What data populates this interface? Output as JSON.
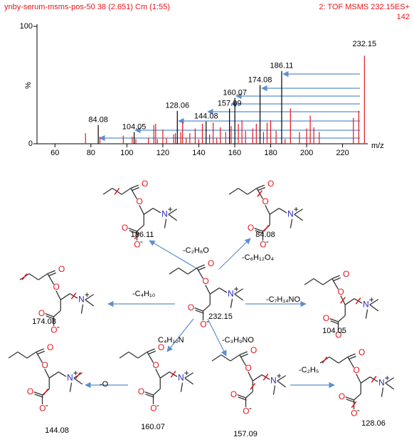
{
  "chart_data": {
    "type": "stem",
    "title": "ynby-serum-msms-pos-50 38 (2.651) Cm (1:55)",
    "subtitle": "2: TOF MSMS 232.15ES+",
    "annotation": "142",
    "xlabel": "m/z",
    "ylabel": "%",
    "xlim": [
      50,
      234
    ],
    "xticks": [
      60,
      80,
      100,
      120,
      140,
      160,
      180,
      200,
      220
    ],
    "ylim": [
      0,
      100
    ],
    "yticks": [
      0,
      100
    ],
    "series": [
      {
        "x": [
          84.08,
          104.05,
          128.06,
          144.08,
          157.09,
          160.07,
          174.08,
          186.11,
          232.15
        ],
        "values": [
          16,
          10,
          28,
          19,
          30,
          39,
          50,
          62,
          75
        ],
        "colors": [
          "#000000",
          "#000000",
          "#000000",
          "#000000",
          "#000000",
          "#000000",
          "#000000",
          "#000000",
          "#e8141a"
        ],
        "show_x_labels": true
      },
      {
        "x": [
          77,
          85,
          98,
          103,
          105,
          112,
          115,
          116,
          117,
          120,
          122,
          126,
          127,
          130,
          131,
          133,
          135,
          138,
          140,
          142,
          146,
          148,
          150,
          152,
          155,
          158,
          162,
          164,
          166,
          170,
          172,
          176,
          178,
          180,
          183,
          188,
          191,
          196,
          200,
          202,
          204,
          207,
          226,
          229
        ],
        "values": [
          9,
          6,
          7,
          6,
          4,
          5,
          16,
          17,
          4,
          12,
          5,
          8,
          9,
          10,
          18,
          5,
          9,
          13,
          4,
          17,
          8,
          18,
          5,
          14,
          10,
          15,
          17,
          20,
          11,
          13,
          17,
          10,
          18,
          20,
          11,
          4,
          30,
          10,
          13,
          24,
          14,
          10,
          22,
          28
        ],
        "color": "#e8141a",
        "show_x_labels": false
      }
    ]
  },
  "scheme": {
    "atoms": {
      "oxygen": "O",
      "nitrogen": "N",
      "plus": "+",
      "minus": "-"
    },
    "fragments": [
      "186.11",
      "84.08",
      "174.08",
      "232.15",
      "104.05",
      "144.08",
      "160.07",
      "157.09",
      "128.06"
    ],
    "losses": [
      "-C₂H₆O",
      "-C₆H₁₂O₄",
      "-C₄H₁₀",
      "-C₇H₁₄NO",
      "C₄H₁₀N",
      "-C₃H₉NO",
      "-O",
      "-C₂H₅"
    ]
  }
}
